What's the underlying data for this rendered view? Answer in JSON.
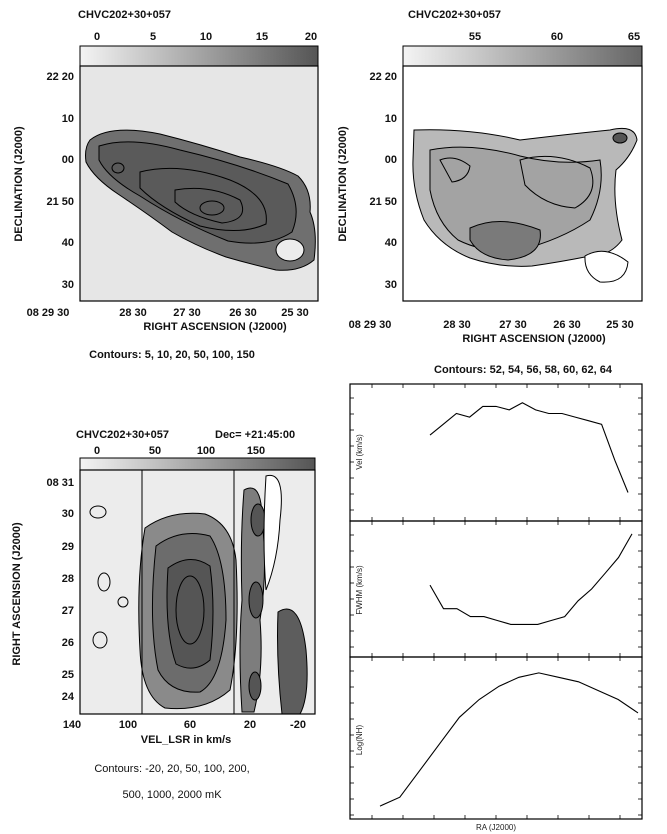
{
  "panels": {
    "tl": {
      "title": "CHVC202+30+057",
      "colorbar_ticks": [
        "0",
        "5",
        "10",
        "15",
        "20"
      ],
      "y_ticks": [
        "22 20",
        "10",
        "00",
        "21 50",
        "40",
        "30"
      ],
      "x_ticks": [
        "08 29 30",
        "28 30",
        "27 30",
        "26 30",
        "25 30"
      ],
      "ylabel": "DECLINATION (J2000)",
      "xlabel": "RIGHT ASCENSION (J2000)",
      "caption": "Contours: 5, 10, 20, 50, 100, 150"
    },
    "tr": {
      "title": "CHVC202+30+057",
      "colorbar_ticks": [
        "55",
        "60",
        "65"
      ],
      "y_ticks": [
        "22 20",
        "10",
        "00",
        "21 50",
        "40",
        "30"
      ],
      "x_ticks": [
        "08 29 30",
        "28 30",
        "27 30",
        "26 30",
        "25 30"
      ],
      "ylabel": "DECLINATION (J2000)",
      "xlabel": "RIGHT ASCENSION (J2000)",
      "caption": "Contours: 52, 54, 56, 58, 60, 62, 64"
    },
    "bl": {
      "title": "CHVC202+30+057",
      "dec_label": "Dec= +21:45:00",
      "colorbar_ticks": [
        "0",
        "50",
        "100",
        "150"
      ],
      "y_ticks": [
        "08 31",
        "30",
        "29",
        "28",
        "27",
        "26",
        "25",
        "24"
      ],
      "x_ticks": [
        "140",
        "100",
        "60",
        "20",
        "-20"
      ],
      "ylabel": "RIGHT ASCENSION (J2000)",
      "xlabel": "VEL_LSR in km/s",
      "caption_line1": "Contours: -20, 20, 50, 100, 200,",
      "caption_line2": "500, 1000, 2000 mK"
    },
    "br": {
      "vel_ylabel": "Vel (km/s)",
      "fwhm_ylabel": "FWHM (km/s)",
      "lognh_ylabel": "Log(NH)",
      "xlabel": "RA (J2000)"
    }
  },
  "chart_data": [
    {
      "type": "line",
      "title": "",
      "xlabel": "RA (J2000)",
      "ylabel": "Vel (km/s)",
      "series": [
        {
          "values": [
            52,
            55,
            58,
            57,
            60,
            60,
            59,
            61,
            59,
            58,
            58,
            57,
            56,
            55,
            45,
            36
          ]
        }
      ]
    },
    {
      "type": "line",
      "title": "",
      "xlabel": "RA (J2000)",
      "ylabel": "FWHM (km/s)",
      "series": [
        {
          "values": [
            31,
            25,
            25,
            23,
            23,
            22,
            21,
            21,
            21,
            22,
            23,
            27,
            30,
            34,
            38,
            44
          ]
        }
      ]
    },
    {
      "type": "line",
      "title": "",
      "xlabel": "RA (J2000)",
      "ylabel": "Log(NH)",
      "series": [
        {
          "values": [
            17.4,
            17.6,
            18.2,
            18.8,
            19.4,
            19.8,
            20.1,
            20.3,
            20.4,
            20.3,
            20.2,
            20.0,
            19.8,
            19.5
          ]
        }
      ]
    }
  ]
}
